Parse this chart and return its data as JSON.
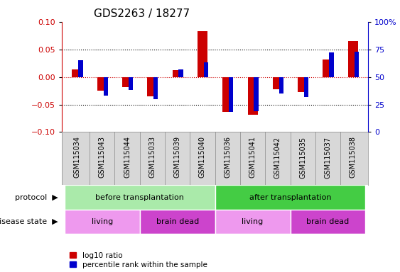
{
  "title": "GDS2263 / 18277",
  "samples": [
    "GSM115034",
    "GSM115043",
    "GSM115044",
    "GSM115033",
    "GSM115039",
    "GSM115040",
    "GSM115036",
    "GSM115041",
    "GSM115042",
    "GSM115035",
    "GSM115037",
    "GSM115038"
  ],
  "log10_ratio": [
    0.013,
    -0.025,
    -0.018,
    -0.035,
    0.012,
    0.083,
    -0.063,
    -0.068,
    -0.022,
    -0.028,
    0.032,
    0.065
  ],
  "percentile_rank": [
    65,
    33,
    38,
    30,
    57,
    63,
    18,
    19,
    35,
    32,
    72,
    73
  ],
  "ylim": [
    -0.1,
    0.1
  ],
  "yticks_left": [
    -0.1,
    -0.05,
    0.0,
    0.05,
    0.1
  ],
  "yticks_right_labels": [
    "0",
    "25",
    "50",
    "75",
    "100%"
  ],
  "dotted_lines": [
    -0.05,
    0.05
  ],
  "log10_color": "#cc0000",
  "percentile_color": "#0000cc",
  "protocol_before_color": "#aaeaaa",
  "protocol_after_color": "#44cc44",
  "disease_living_color": "#ee99ee",
  "disease_brain_color": "#cc44cc",
  "protocol_label": "protocol",
  "disease_label": "disease state",
  "protocol_before_text": "before transplantation",
  "protocol_after_text": "after transplantation",
  "living_text": "living",
  "brain_dead_text": "brain dead",
  "legend_log10": "log10 ratio",
  "legend_pct": "percentile rank within the sample",
  "protocol_before_span": [
    0,
    5
  ],
  "protocol_after_span": [
    6,
    11
  ],
  "living1_span": [
    0,
    2
  ],
  "brain_dead1_span": [
    3,
    5
  ],
  "living2_span": [
    6,
    8
  ],
  "brain_dead2_span": [
    9,
    11
  ],
  "xticklabel_fontsize": 7,
  "title_fontsize": 11,
  "left_color": "#cc0000",
  "right_color": "#0000cc",
  "red_bar_width": 0.4,
  "blue_bar_width": 0.18
}
